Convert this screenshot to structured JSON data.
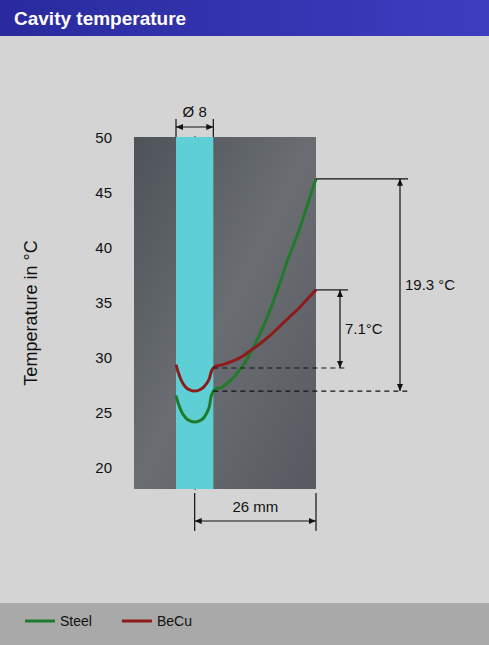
{
  "chart_data": {
    "type": "line",
    "title": "Cavity temperature",
    "y_label": "Temperature in °C",
    "x": [
      -4,
      -3,
      -2,
      -1,
      0,
      1,
      2,
      3,
      4,
      6,
      8,
      10,
      12,
      14,
      16,
      18,
      20,
      22,
      24,
      26
    ],
    "series": [
      {
        "name": "Steel",
        "color": "#1f7a2a",
        "values": [
          26.5,
          25.2,
          24.5,
          24.2,
          24.1,
          24.2,
          24.5,
          25.3,
          26.9,
          27.3,
          28.0,
          29.0,
          30.4,
          32.1,
          34.1,
          36.4,
          38.9,
          41.1,
          43.6,
          46.2
        ]
      },
      {
        "name": "BeCu",
        "color": "#8e1b1b",
        "values": [
          29.3,
          28.0,
          27.3,
          27.0,
          26.9,
          27.0,
          27.3,
          27.9,
          29.0,
          29.3,
          29.6,
          30.0,
          30.6,
          31.2,
          31.9,
          32.7,
          33.5,
          34.3,
          35.2,
          36.1
        ]
      }
    ],
    "xlim": [
      -13,
      26
    ],
    "ylim": [
      18,
      50
    ],
    "yticks": [
      20,
      25,
      30,
      35,
      40,
      45,
      50
    ],
    "tick_labels": "y",
    "grid": false,
    "legend": "bottom left",
    "annotations": [
      {
        "text": "19.3 °C",
        "y_from": 26.9,
        "y_to": 46.2
      },
      {
        "text": "7.1°C",
        "y_from": 29.0,
        "y_to": 36.1
      }
    ],
    "dimensions": [
      {
        "text": "Ø 8",
        "x_from": -4,
        "x_to": 4
      },
      {
        "text": "26 mm",
        "x_from": 0,
        "x_to": 26
      }
    ]
  }
}
